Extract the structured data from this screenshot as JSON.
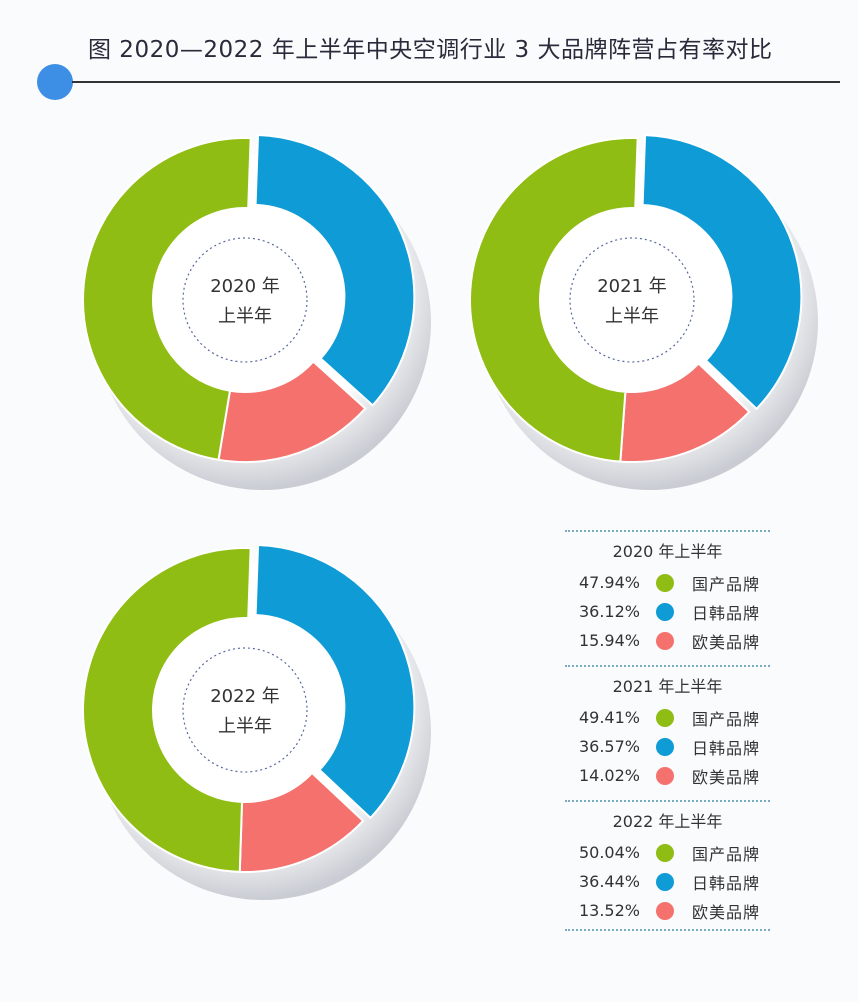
{
  "title": "图  2020—2022 年上半年中央空调行业 3 大品牌阵营占有率对比",
  "colors": {
    "国产品牌": "#8fbd13",
    "日韩品牌": "#0e9bd6",
    "欧美品牌": "#f4716e"
  },
  "chart_data": [
    {
      "type": "pie",
      "donut": true,
      "center_label": [
        "2020 年",
        "上半年"
      ],
      "legend_title": "2020 年上半年",
      "categories": [
        "国产品牌",
        "日韩品牌",
        "欧美品牌"
      ],
      "values": [
        47.94,
        36.12,
        15.94
      ],
      "value_labels": [
        "47.94%",
        "36.12%",
        "15.94%"
      ]
    },
    {
      "type": "pie",
      "donut": true,
      "center_label": [
        "2021 年",
        "上半年"
      ],
      "legend_title": "2021 年上半年",
      "categories": [
        "国产品牌",
        "日韩品牌",
        "欧美品牌"
      ],
      "values": [
        49.41,
        36.57,
        14.02
      ],
      "value_labels": [
        "49.41%",
        "36.57%",
        "14.02%"
      ]
    },
    {
      "type": "pie",
      "donut": true,
      "center_label": [
        "2022 年",
        "上半年"
      ],
      "legend_title": "2022 年上半年",
      "categories": [
        "国产品牌",
        "日韩品牌",
        "欧美品牌"
      ],
      "values": [
        50.04,
        36.44,
        13.52
      ],
      "value_labels": [
        "50.04%",
        "36.44%",
        "13.52%"
      ]
    }
  ]
}
